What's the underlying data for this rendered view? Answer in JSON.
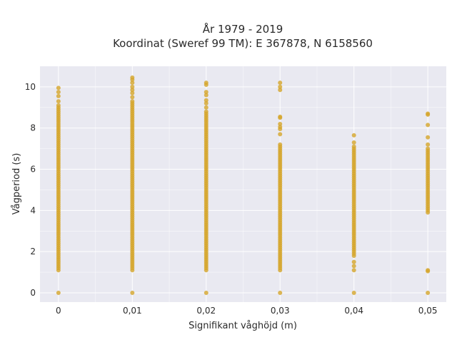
{
  "chart_data": {
    "type": "scatter",
    "title_lines": [
      "År 1979 - 2019",
      "Koordinat (Sweref 99 TM): E 367878, N 6158560"
    ],
    "xlabel": "Signifikant våghöjd (m)",
    "ylabel": "Vågperiod (s)",
    "xlim": [
      -0.0025,
      0.0525
    ],
    "ylim": [
      -0.45,
      11.0
    ],
    "x_ticks": [
      {
        "value": 0,
        "label": "0"
      },
      {
        "value": 0.01,
        "label": "0,01"
      },
      {
        "value": 0.02,
        "label": "0,02"
      },
      {
        "value": 0.03,
        "label": "0,03"
      },
      {
        "value": 0.04,
        "label": "0,04"
      },
      {
        "value": 0.05,
        "label": "0,05"
      }
    ],
    "y_ticks": [
      {
        "value": 0,
        "label": "0"
      },
      {
        "value": 2,
        "label": "2"
      },
      {
        "value": 4,
        "label": "4"
      },
      {
        "value": 6,
        "label": "6"
      },
      {
        "value": 8,
        "label": "8"
      },
      {
        "value": 10,
        "label": "10"
      }
    ],
    "grid": true,
    "colors": {
      "point": "#d4a52a",
      "plot_bg": "#e9e9f1",
      "grid": "#ffffff"
    },
    "columns": [
      {
        "x": 0,
        "dense_range": [
          1.1,
          9.1
        ],
        "extra_points": [
          0,
          9.3,
          9.55,
          9.75,
          9.95
        ]
      },
      {
        "x": 0.01,
        "dense_range": [
          1.1,
          9.3
        ],
        "extra_points": [
          0,
          9.5,
          9.7,
          9.85,
          10.0,
          10.2,
          10.35,
          10.45
        ]
      },
      {
        "x": 0.02,
        "dense_range": [
          1.1,
          8.8
        ],
        "extra_points": [
          0,
          9.0,
          9.2,
          9.35,
          9.6,
          9.75,
          10.1,
          10.2
        ]
      },
      {
        "x": 0.03,
        "dense_range": [
          1.1,
          7.2
        ],
        "extra_points": [
          0,
          7.7,
          7.95,
          8.05,
          8.2,
          8.5,
          8.55,
          9.85,
          10.0,
          10.2
        ]
      },
      {
        "x": 0.04,
        "dense_range": [
          1.8,
          7.1
        ],
        "extra_points": [
          0,
          1.1,
          1.3,
          1.5,
          7.3,
          7.65
        ]
      },
      {
        "x": 0.05,
        "dense_range": [
          3.9,
          7.0
        ],
        "extra_points": [
          0,
          1.05,
          1.1,
          7.2,
          7.55,
          8.15,
          8.65,
          8.7
        ]
      }
    ]
  }
}
